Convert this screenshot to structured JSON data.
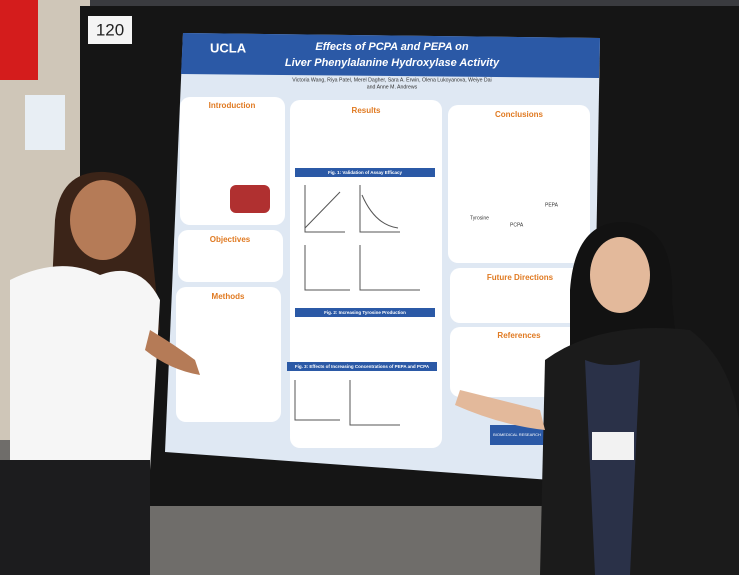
{
  "sign": "120",
  "poster": {
    "logo": "UCLA",
    "title_line1": "Effects of PCPA and PEPA on",
    "title_line2": "Liver Phenylalanine Hydroxylase Activity",
    "authors_line1": "Victoria Wang, Riya Patel, Merel Dagher, Sara A. Erwin, Olena Lukoyanova, Weiye Dai",
    "authors_line2": "and Anne M. Andrews",
    "sections": [
      "Introduction",
      "Objectives",
      "Methods",
      "Results",
      "Conclusions",
      "Future Directions",
      "References"
    ],
    "figures": [
      "Fig. 1: Validation of Assay Efficacy",
      "Fig. 2: Increasing Tyrosine Production",
      "Fig. 3: Effects of Increasing Concentrations of PEPA and PCPA"
    ],
    "structures": [
      "Tyrosine",
      "PCPA",
      "PEPA"
    ],
    "sponsor": "BIOMEDICAL RESEARCH"
  }
}
